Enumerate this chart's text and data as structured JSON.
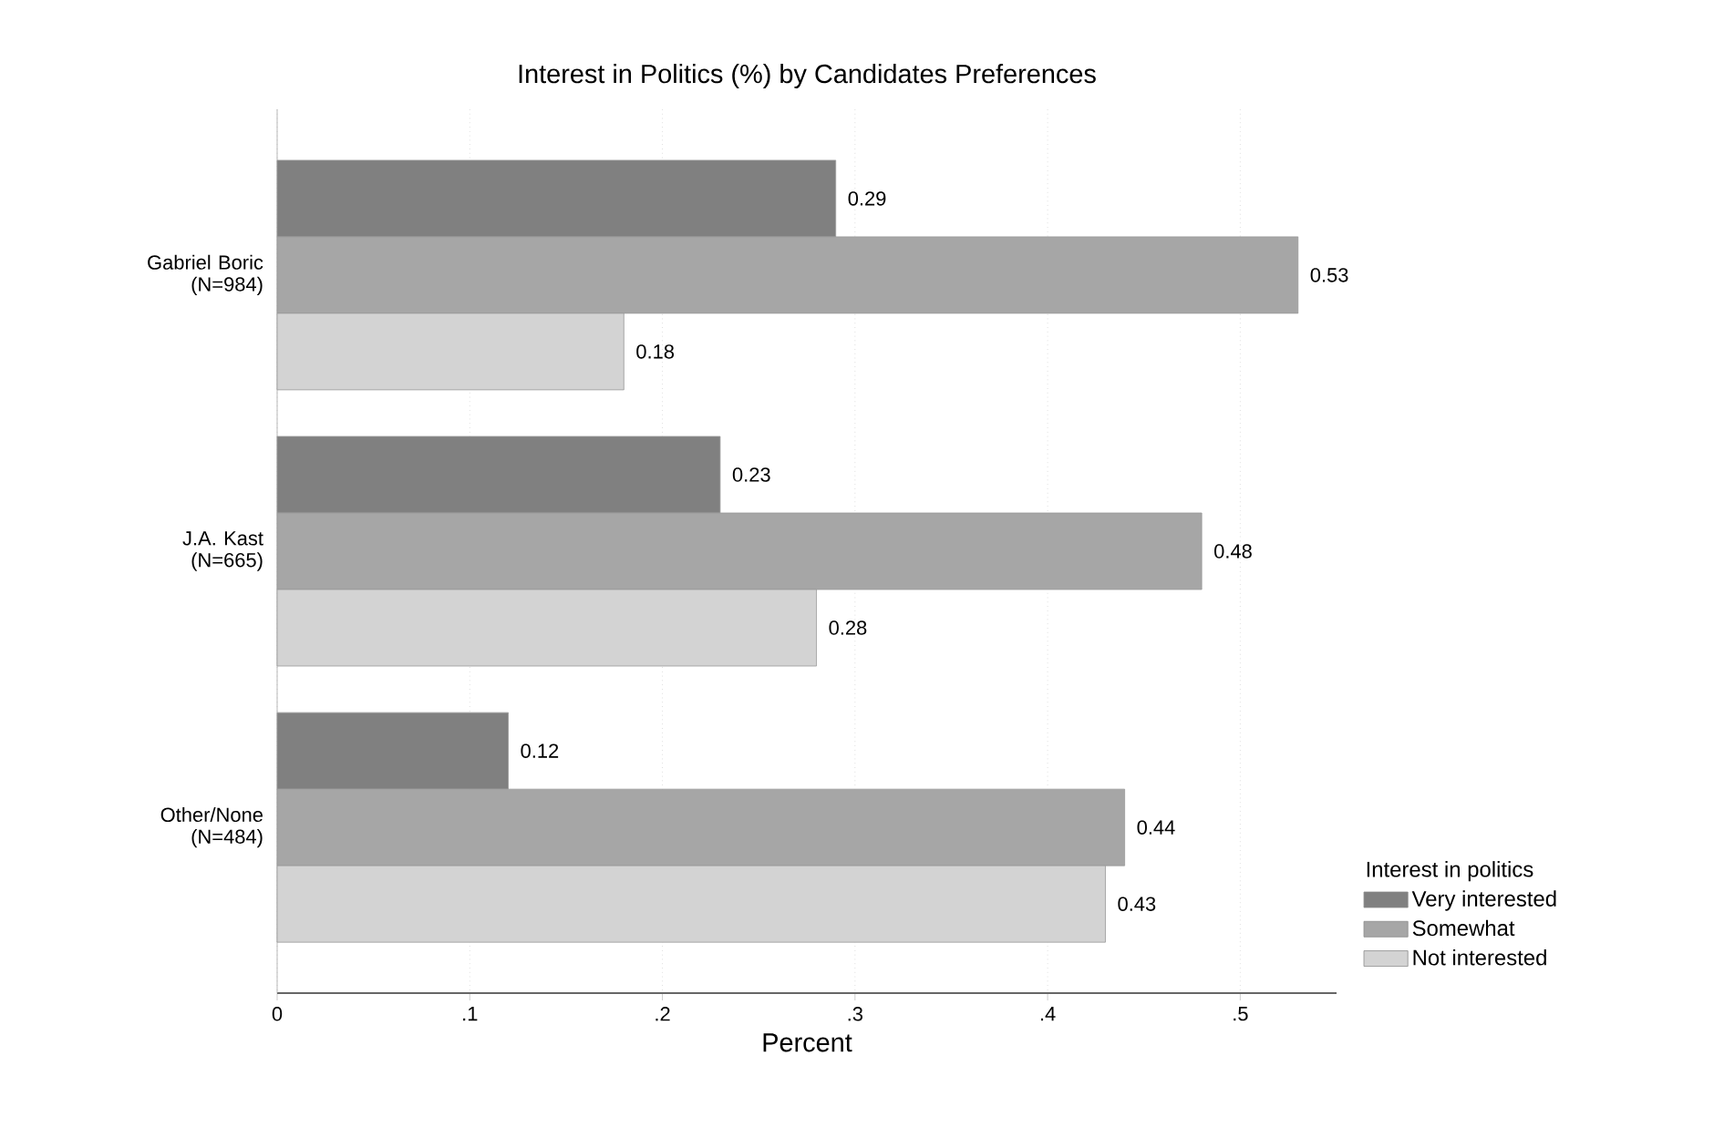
{
  "chart_data": {
    "type": "bar",
    "orientation": "horizontal",
    "title": "Interest in Politics (%) by Candidates Preferences",
    "xlabel": "Percent",
    "legend_title": "Interest in politics",
    "categories": [
      "Gabriel Boric (N=984)",
      "J.A. Kast (N=665)",
      "Other/None (N=484)"
    ],
    "series": [
      {
        "name": "Very interested",
        "color": "#808080",
        "values": [
          0.29,
          0.23,
          0.12
        ]
      },
      {
        "name": "Somewhat",
        "color": "#a6a6a6",
        "values": [
          0.53,
          0.48,
          0.44
        ]
      },
      {
        "name": "Not interested",
        "color": "#d3d3d3",
        "values": [
          0.18,
          0.28,
          0.43
        ]
      }
    ],
    "xlim": [
      0,
      0.55
    ],
    "xticks": [
      0,
      {
        "value": 0.1,
        "label": ".1"
      },
      {
        "value": 0.2,
        "label": ".2"
      },
      {
        "value": 0.3,
        "label": ".3"
      },
      {
        "value": 0.4,
        "label": ".4"
      },
      {
        "value": 0.5,
        "label": ".5"
      }
    ],
    "grid": "x",
    "legend": "bottom right",
    "data_labels": true
  }
}
